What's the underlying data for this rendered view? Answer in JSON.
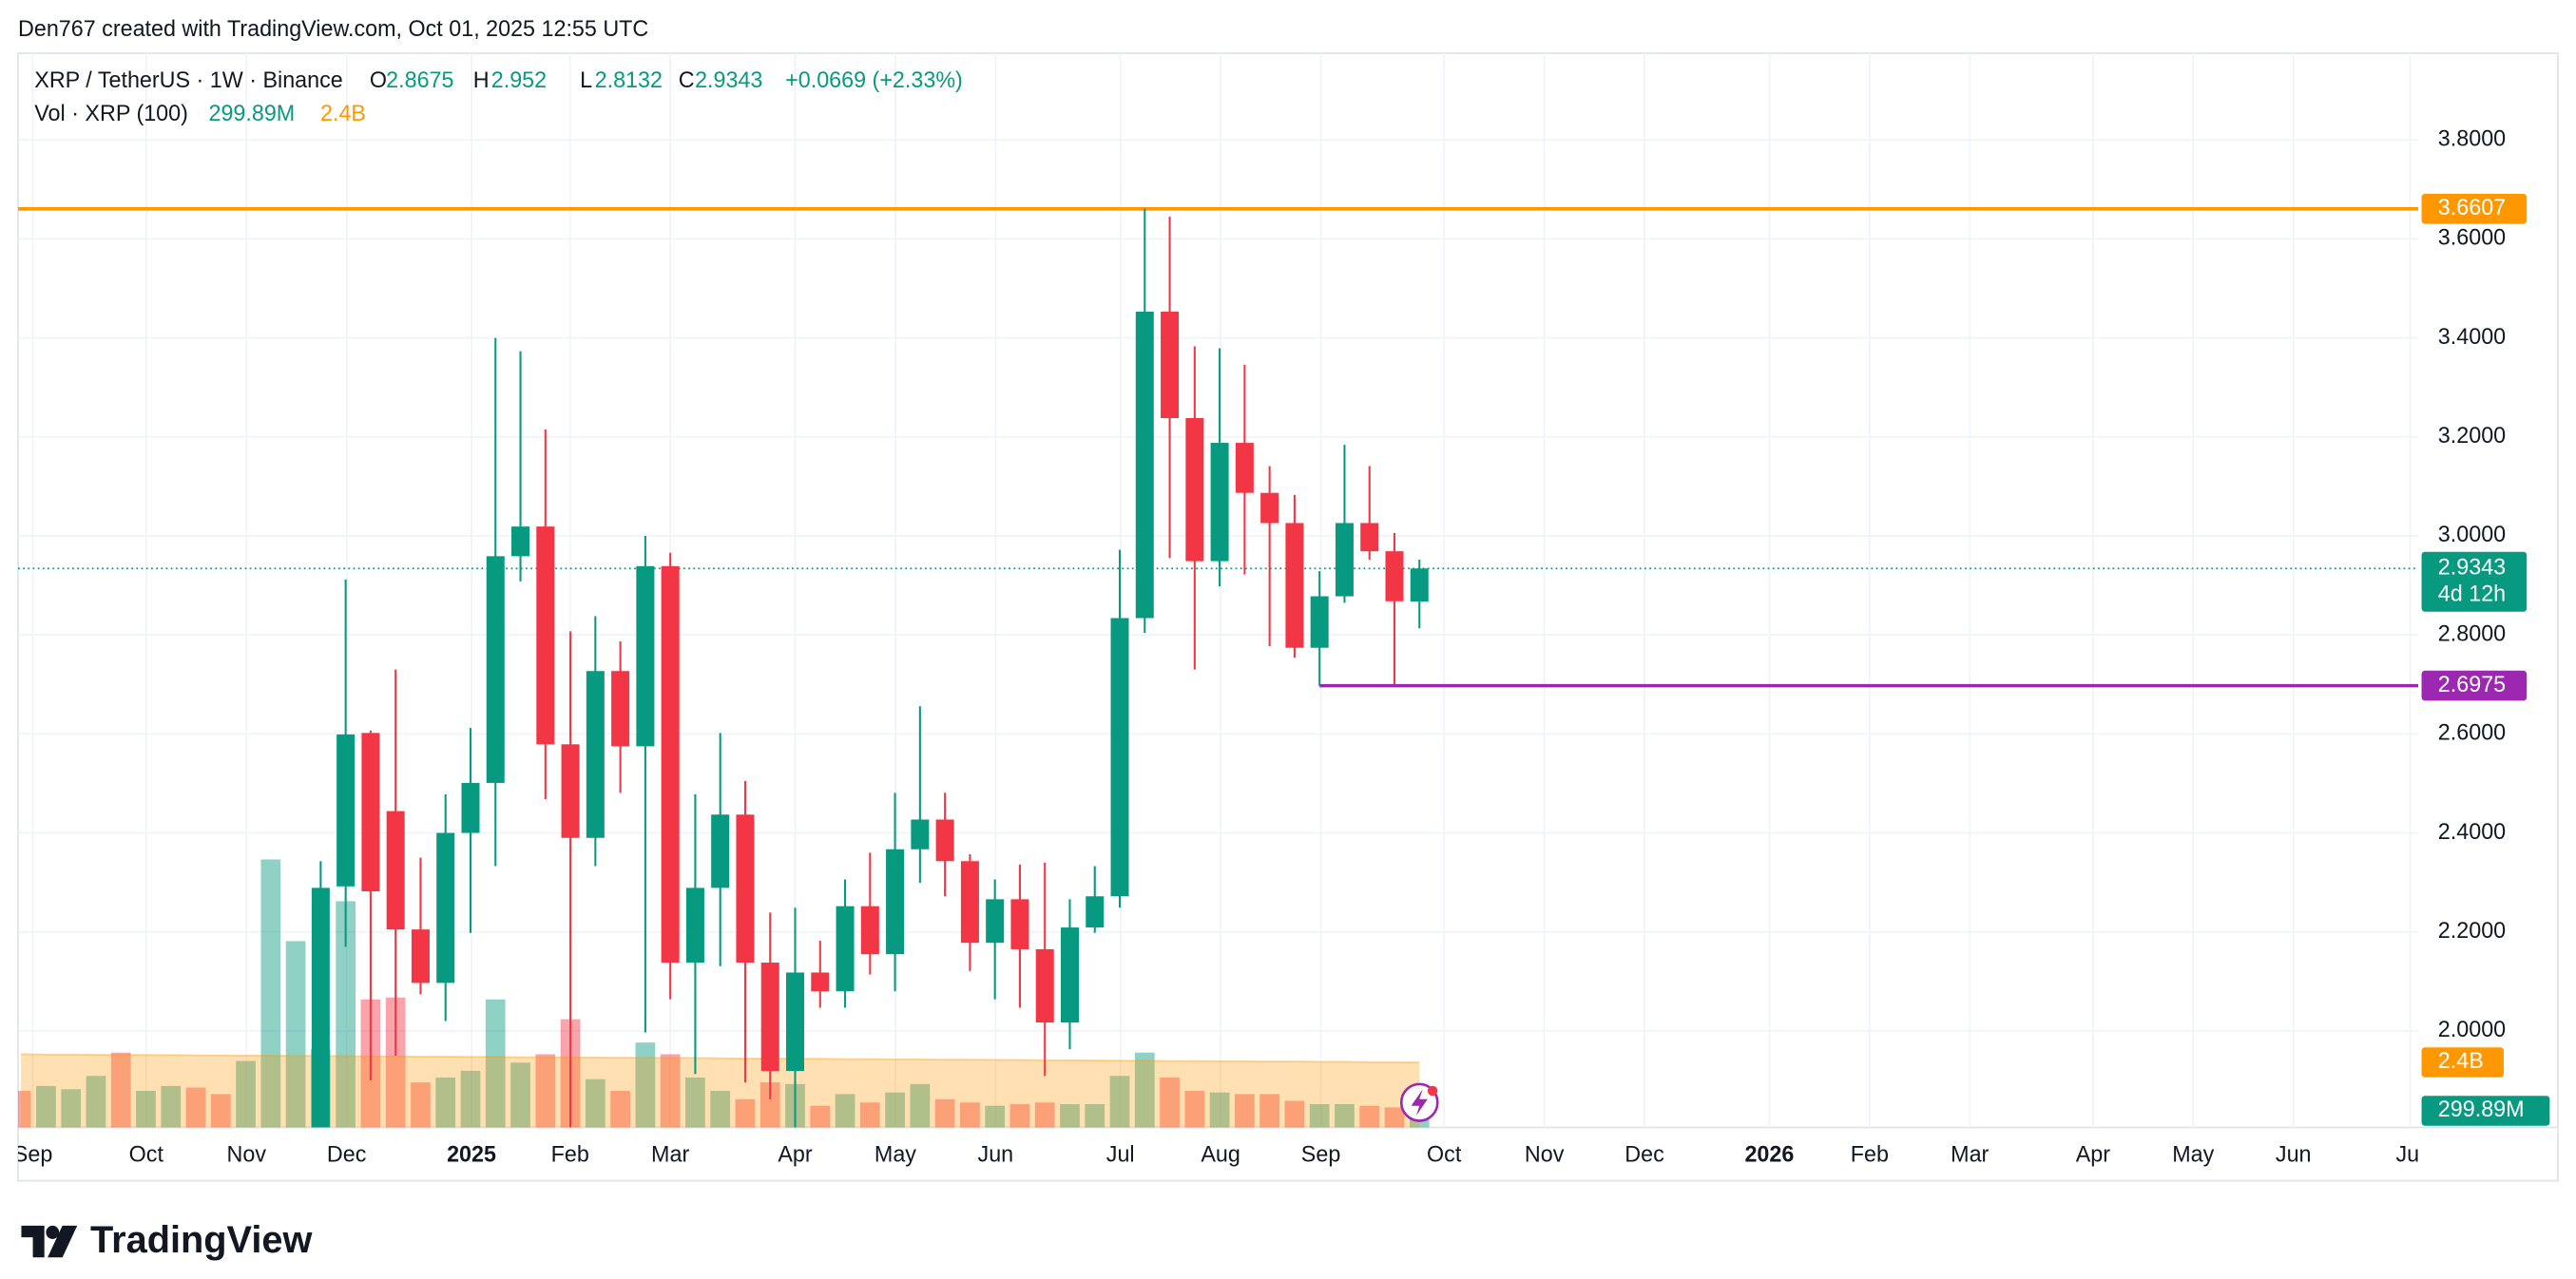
{
  "chart_data": {
    "type": "candlestick",
    "caption": "Den767 created with TradingView.com, Oct 01, 2025 12:55 UTC",
    "title": "XRP / TetherUS · 1W · Binance",
    "change_label": "+0.0669 (+2.33%)",
    "ohlc_letters": [
      "O",
      "H",
      "L",
      "C"
    ],
    "brand": "TradingView",
    "up_color": "#089981",
    "down_color": "#f23645",
    "candles": {
      "open": [
        1.75,
        2.292,
        2.602,
        2.444,
        2.205,
        2.097,
        2.4,
        2.501,
        2.959,
        3.019,
        2.579,
        2.39,
        2.727,
        2.575,
        2.939,
        2.138,
        2.289,
        2.437,
        2.138,
        1.919,
        2.118,
        2.08,
        2.252,
        2.155,
        2.367,
        2.427,
        2.343,
        2.178,
        2.266,
        2.165,
        2.017,
        2.209,
        2.272,
        2.834,
        3.453,
        3.238,
        2.949,
        3.188,
        3.087,
        3.026,
        2.774,
        2.878,
        3.026,
        2.969,
        2.8675
      ],
      "high": [
        2.343,
        2.912,
        2.607,
        2.73,
        2.35,
        2.478,
        2.612,
        3.4,
        3.373,
        3.215,
        2.807,
        2.838,
        2.787,
        3.0,
        2.966,
        2.478,
        2.602,
        2.505,
        2.239,
        2.249,
        2.182,
        2.306,
        2.36,
        2.481,
        2.656,
        2.481,
        2.357,
        2.306,
        2.336,
        2.34,
        2.266,
        2.333,
        2.972,
        3.661,
        3.645,
        3.383,
        3.379,
        3.346,
        3.141,
        3.083,
        2.929,
        3.184,
        3.141,
        3.006,
        2.952
      ],
      "low": [
        1.62,
        2.17,
        1.9,
        1.95,
        2.074,
        2.02,
        2.198,
        2.333,
        2.908,
        2.468,
        1.77,
        2.333,
        2.481,
        1.997,
        2.064,
        1.913,
        2.131,
        1.896,
        1.862,
        1.78,
        2.047,
        2.047,
        2.114,
        2.08,
        2.299,
        2.272,
        2.121,
        2.064,
        2.047,
        1.909,
        1.963,
        2.198,
        2.249,
        2.804,
        2.955,
        2.73,
        2.898,
        2.922,
        2.777,
        2.754,
        2.697,
        2.865,
        2.952,
        2.7,
        2.8132
      ],
      "close": [
        2.289,
        2.599,
        2.282,
        2.205,
        2.097,
        2.4,
        2.501,
        2.959,
        3.019,
        2.579,
        2.39,
        2.727,
        2.575,
        2.939,
        2.138,
        2.289,
        2.437,
        2.138,
        1.919,
        2.118,
        2.08,
        2.252,
        2.155,
        2.367,
        2.427,
        2.343,
        2.178,
        2.266,
        2.165,
        2.017,
        2.209,
        2.272,
        2.834,
        3.453,
        3.238,
        2.949,
        3.188,
        3.087,
        3.026,
        2.774,
        2.878,
        3.026,
        2.969,
        2.868,
        2.9343
      ]
    },
    "ylim": [
      1.805,
      3.975
    ],
    "yticks": [
      {
        "value": 2.0,
        "label": "2.0000"
      },
      {
        "value": 2.2,
        "label": "2.2000"
      },
      {
        "value": 2.4,
        "label": "2.4000"
      },
      {
        "value": 2.6,
        "label": "2.6000"
      },
      {
        "value": 2.8,
        "label": "2.8000"
      },
      {
        "value": 3.0,
        "label": "3.0000"
      },
      {
        "value": 3.2,
        "label": "3.2000"
      },
      {
        "value": 3.4,
        "label": "3.4000"
      },
      {
        "value": 3.6,
        "label": "3.6000"
      },
      {
        "value": 3.8,
        "label": "3.8000"
      }
    ],
    "grid": true,
    "xticks": [
      "Sep",
      "Oct",
      "Nov",
      "Dec",
      "2025",
      "Feb",
      "Mar",
      "Apr",
      "May",
      "Jun",
      "Jul",
      "Aug",
      "Sep",
      "Oct",
      "Nov",
      "Dec",
      "2026",
      "Feb",
      "Mar",
      "Apr",
      "May",
      "Jun",
      "Jul"
    ],
    "hlines": [
      {
        "value": 3.6607,
        "color": "#ff9800"
      },
      {
        "value": 2.6975,
        "color": "#9c27b0"
      }
    ],
    "countdown": "4d 12h",
    "volume": {
      "name": "Vol · XRP (100)",
      "ylim": [
        0,
        39600000000
      ],
      "values": [
        1350000000,
        1530000000,
        1410000000,
        1900000000,
        2760000000,
        1350000000,
        1530000000,
        1470000000,
        1230000000,
        2450000000,
        9880000000,
        6870000000,
        2880000000,
        8340000000,
        4720000000,
        4790000000,
        1660000000,
        1840000000,
        2090000000,
        4720000000,
        2390000000,
        2700000000,
        3990000000,
        1780000000,
        1350000000,
        3130000000,
        2700000000,
        1840000000,
        1350000000,
        1040000000,
        1660000000,
        1600000000,
        800000000,
        1230000000,
        920000000,
        1290000000,
        1600000000,
        1040000000,
        920000000,
        800000000,
        860000000,
        920000000,
        860000000,
        860000000,
        1900000000,
        2760000000,
        1840000000,
        1350000000,
        1290000000,
        1230000000,
        1230000000,
        980000000,
        860000000,
        860000000,
        800000000,
        740000000,
        299890000
      ],
      "colors": [
        "#f23645",
        "#089981",
        "#089981",
        "#089981",
        "#f23645",
        "#089981",
        "#089981",
        "#f23645",
        "#f23645",
        "#089981",
        "#089981",
        "#089981",
        "#089981",
        "#089981",
        "#f23645",
        "#f23645",
        "#f23645",
        "#089981",
        "#089981",
        "#089981",
        "#089981",
        "#f23645",
        "#f23645",
        "#089981",
        "#f23645",
        "#089981",
        "#f23645",
        "#089981",
        "#089981",
        "#f23645",
        "#f23645",
        "#089981",
        "#f23645",
        "#089981",
        "#f23645",
        "#089981",
        "#089981",
        "#f23645",
        "#f23645",
        "#089981",
        "#f23645",
        "#f23645",
        "#089981",
        "#089981",
        "#089981",
        "#089981",
        "#f23645",
        "#f23645",
        "#089981",
        "#f23645",
        "#f23645",
        "#f23645",
        "#089981",
        "#089981",
        "#f23645",
        "#f23645",
        "#089981"
      ],
      "last_label": "299.89M",
      "ma_color": "#ff9800",
      "ma_values": [
        2700000000,
        2690000000,
        2690000000,
        2680000000,
        2680000000,
        2670000000,
        2670000000,
        2660000000,
        2660000000,
        2650000000,
        2650000000,
        2640000000,
        2640000000,
        2630000000,
        2620000000,
        2620000000,
        2610000000,
        2610000000,
        2600000000,
        2600000000,
        2590000000,
        2590000000,
        2580000000,
        2580000000,
        2570000000,
        2570000000,
        2560000000,
        2560000000,
        2550000000,
        2540000000,
        2540000000,
        2530000000,
        2530000000,
        2520000000,
        2520000000,
        2510000000,
        2510000000,
        2500000000,
        2500000000,
        2490000000,
        2490000000,
        2480000000,
        2480000000,
        2470000000,
        2460000000,
        2460000000,
        2450000000,
        2450000000,
        2440000000,
        2440000000,
        2430000000,
        2430000000,
        2420000000,
        2420000000,
        2410000000,
        2410000000,
        2400000000
      ],
      "ma_last_label": "2.4B"
    }
  }
}
